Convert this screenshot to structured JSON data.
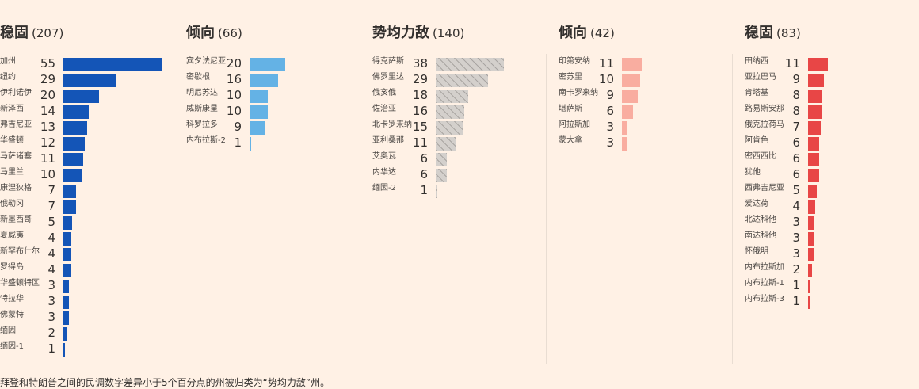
{
  "chart_data": {
    "type": "bar",
    "groups": [
      {
        "title": "稳固",
        "count": "(207)",
        "color": "#1455b7",
        "pattern": "solid",
        "categories": [
          "加州",
          "纽约",
          "伊利诺伊",
          "新泽西",
          "弗吉尼亚",
          "华盛顿",
          "马萨诸塞",
          "马里兰",
          "康涅狄格",
          "俄勒冈",
          "新墨西哥",
          "夏威夷",
          "新罕布什尔",
          "罗得岛",
          "华盛顿特区",
          "特拉华",
          "佛蒙特",
          "缅因",
          "缅因-1"
        ],
        "values": [
          55,
          29,
          20,
          14,
          13,
          12,
          11,
          10,
          7,
          7,
          5,
          4,
          4,
          4,
          3,
          3,
          3,
          2,
          1
        ]
      },
      {
        "title": "倾向",
        "count": "(66)",
        "color": "#64b2e5",
        "pattern": "solid",
        "categories": [
          "宾夕法尼亚",
          "密歇根",
          "明尼苏达",
          "威斯康星",
          "科罗拉多",
          "内布拉斯-2"
        ],
        "values": [
          20,
          16,
          10,
          10,
          9,
          1
        ]
      },
      {
        "title": "势均力敌",
        "count": "(140)",
        "color": "#d4d0cc",
        "pattern": "hatch",
        "categories": [
          "得克萨斯",
          "佛罗里达",
          "俄亥俄",
          "佐治亚",
          "北卡罗来纳",
          "亚利桑那",
          "艾奥瓦",
          "内华达",
          "缅因-2"
        ],
        "values": [
          38,
          29,
          18,
          16,
          15,
          11,
          6,
          6,
          1
        ]
      },
      {
        "title": "倾向",
        "count": "(42)",
        "color": "#f9ada0",
        "pattern": "solid",
        "categories": [
          "印第安纳",
          "密苏里",
          "南卡罗来纳",
          "堪萨斯",
          "阿拉斯加",
          "蒙大拿"
        ],
        "values": [
          11,
          10,
          9,
          6,
          3,
          3
        ]
      },
      {
        "title": "稳固",
        "count": "(83)",
        "color": "#e84646",
        "pattern": "solid",
        "categories": [
          "田纳西",
          "亚拉巴马",
          "肯塔基",
          "路易斯安那",
          "俄克拉荷马",
          "阿肯色",
          "密西西比",
          "犹他",
          "西弗吉尼亚",
          "爱达荷",
          "北达科他",
          "南达科他",
          "怀俄明",
          "内布拉斯加",
          "内布拉斯-1",
          "内布拉斯-3"
        ],
        "values": [
          11,
          9,
          8,
          8,
          7,
          6,
          6,
          6,
          5,
          4,
          3,
          3,
          3,
          2,
          1,
          1
        ]
      }
    ]
  },
  "footnote": "拜登和特朗普之间的民调数字差异小于5个百分点的州被归类为“势均力敌”州。"
}
